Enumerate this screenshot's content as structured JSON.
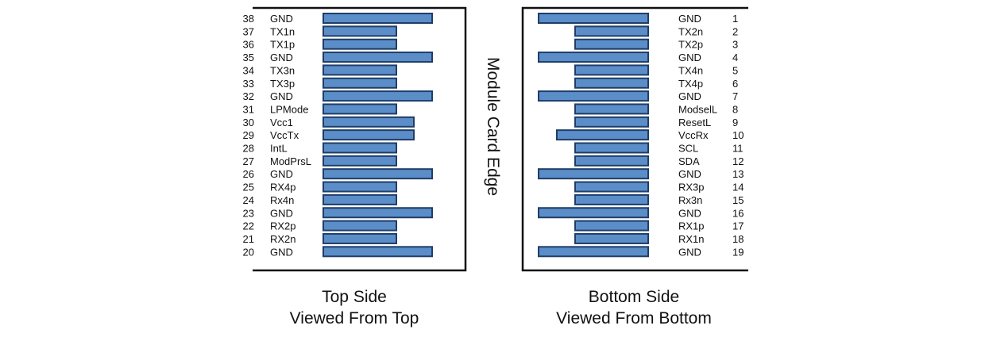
{
  "connector_panels": {
    "edge_label": "Module Card Edge",
    "top_side": {
      "caption_line1": "Top Side",
      "caption_line2": "Viewed From Top",
      "pins": [
        {
          "num": "38",
          "name": "GND",
          "pad": "long"
        },
        {
          "num": "37",
          "name": "TX1n",
          "pad": "short"
        },
        {
          "num": "36",
          "name": "TX1p",
          "pad": "short"
        },
        {
          "num": "35",
          "name": "GND",
          "pad": "long"
        },
        {
          "num": "34",
          "name": "TX3n",
          "pad": "short"
        },
        {
          "num": "33",
          "name": "TX3p",
          "pad": "short"
        },
        {
          "num": "32",
          "name": "GND",
          "pad": "long"
        },
        {
          "num": "31",
          "name": "LPMode",
          "pad": "short"
        },
        {
          "num": "30",
          "name": "Vcc1",
          "pad": "medium"
        },
        {
          "num": "29",
          "name": "VccTx",
          "pad": "medium"
        },
        {
          "num": "28",
          "name": "IntL",
          "pad": "short"
        },
        {
          "num": "27",
          "name": "ModPrsL",
          "pad": "short"
        },
        {
          "num": "26",
          "name": "GND",
          "pad": "long"
        },
        {
          "num": "25",
          "name": "RX4p",
          "pad": "short"
        },
        {
          "num": "24",
          "name": "Rx4n",
          "pad": "short"
        },
        {
          "num": "23",
          "name": "GND",
          "pad": "long"
        },
        {
          "num": "22",
          "name": "RX2p",
          "pad": "short"
        },
        {
          "num": "21",
          "name": "RX2n",
          "pad": "short"
        },
        {
          "num": "20",
          "name": "GND",
          "pad": "long"
        }
      ]
    },
    "bottom_side": {
      "caption_line1": "Bottom Side",
      "caption_line2": "Viewed From Bottom",
      "pins": [
        {
          "num": "1",
          "name": "GND",
          "pad": "long"
        },
        {
          "num": "2",
          "name": "TX2n",
          "pad": "short"
        },
        {
          "num": "3",
          "name": "TX2p",
          "pad": "short"
        },
        {
          "num": "4",
          "name": "GND",
          "pad": "long"
        },
        {
          "num": "5",
          "name": "TX4n",
          "pad": "short"
        },
        {
          "num": "6",
          "name": "TX4p",
          "pad": "short"
        },
        {
          "num": "7",
          "name": "GND",
          "pad": "long"
        },
        {
          "num": "8",
          "name": "ModselL",
          "pad": "short"
        },
        {
          "num": "9",
          "name": "ResetL",
          "pad": "short"
        },
        {
          "num": "10",
          "name": "VccRx",
          "pad": "medium"
        },
        {
          "num": "11",
          "name": "SCL",
          "pad": "short"
        },
        {
          "num": "12",
          "name": "SDA",
          "pad": "short"
        },
        {
          "num": "13",
          "name": "GND",
          "pad": "long"
        },
        {
          "num": "14",
          "name": "RX3p",
          "pad": "short"
        },
        {
          "num": "15",
          "name": "Rx3n",
          "pad": "short"
        },
        {
          "num": "16",
          "name": "GND",
          "pad": "long"
        },
        {
          "num": "17",
          "name": "RX1p",
          "pad": "short"
        },
        {
          "num": "18",
          "name": "RX1n",
          "pad": "short"
        },
        {
          "num": "19",
          "name": "GND",
          "pad": "long"
        }
      ]
    },
    "colors": {
      "pad_fill": "#5b8ec9",
      "pad_stroke": "#1f3d66",
      "frame": "#111111"
    }
  }
}
